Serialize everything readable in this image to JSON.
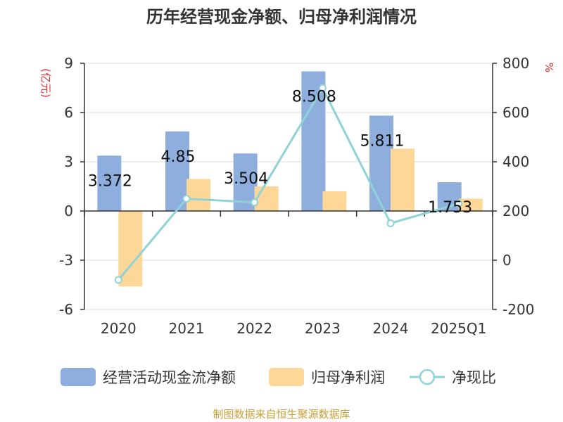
{
  "chart_data": {
    "type": "bar",
    "title": "历年经营现金净额、归母净利润情况",
    "categories": [
      "2020",
      "2021",
      "2022",
      "2023",
      "2024",
      "2025Q1"
    ],
    "left_axis": {
      "unit": "(亿元)",
      "ylim": [
        -6,
        9
      ],
      "ticks": [
        9,
        6,
        3,
        0,
        -3,
        -6
      ]
    },
    "right_axis": {
      "unit": "%",
      "ylim": [
        -200,
        800
      ],
      "ticks": [
        800,
        600,
        400,
        200,
        0,
        -200
      ]
    },
    "series": [
      {
        "name": "经营活动现金流净额",
        "kind": "bar",
        "axis": "left",
        "color": "#8eaedd",
        "values": [
          3.372,
          4.85,
          3.504,
          8.508,
          5.811,
          1.753
        ],
        "labels": [
          "3.372",
          "4.85",
          "3.504",
          "8.508",
          "5.811",
          "1.753"
        ]
      },
      {
        "name": "归母净利润",
        "kind": "bar",
        "axis": "left",
        "color": "#fdd797",
        "values": [
          -4.6,
          1.95,
          1.5,
          1.2,
          3.8,
          0.75
        ]
      },
      {
        "name": "净现比",
        "kind": "line",
        "axis": "right",
        "color": "#8fd3d6",
        "values": [
          -80,
          250,
          235,
          700,
          150,
          230
        ]
      }
    ],
    "grid": true,
    "legend_position": "bottom"
  },
  "footer": {
    "source": "制图数据来自恒生聚源数据库"
  }
}
